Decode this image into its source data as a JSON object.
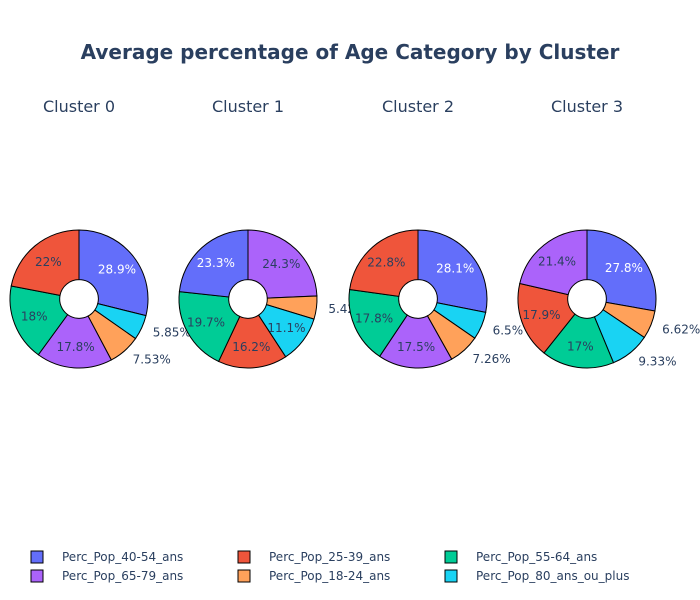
{
  "title": "Average percentage of Age Category by Cluster",
  "chart_data": [
    {
      "type": "pie",
      "title": "Cluster 0",
      "hole": 0.28,
      "slices": [
        {
          "label": "Perc_Pop_40-54_ans",
          "value": 28.9,
          "text": "28.9%"
        },
        {
          "label": "Perc_Pop_80_ans_ou_plus",
          "value": 5.85,
          "text": "5.85%"
        },
        {
          "label": "Perc_Pop_18-24_ans",
          "value": 7.53,
          "text": "7.53%"
        },
        {
          "label": "Perc_Pop_65-79_ans",
          "value": 17.8,
          "text": "17.8%"
        },
        {
          "label": "Perc_Pop_55-64_ans",
          "value": 18,
          "text": "18%"
        },
        {
          "label": "Perc_Pop_25-39_ans",
          "value": 22,
          "text": "22%"
        }
      ]
    },
    {
      "type": "pie",
      "title": "Cluster 1",
      "hole": 0.28,
      "slices": [
        {
          "label": "Perc_Pop_65-79_ans",
          "value": 24.3,
          "text": "24.3%"
        },
        {
          "label": "Perc_Pop_18-24_ans",
          "value": 5.42,
          "text": "5.42%"
        },
        {
          "label": "Perc_Pop_80_ans_ou_plus",
          "value": 11.1,
          "text": "11.1%"
        },
        {
          "label": "Perc_Pop_25-39_ans",
          "value": 16.2,
          "text": "16.2%"
        },
        {
          "label": "Perc_Pop_55-64_ans",
          "value": 19.7,
          "text": "19.7%"
        },
        {
          "label": "Perc_Pop_40-54_ans",
          "value": 23.3,
          "text": "23.3%"
        }
      ]
    },
    {
      "type": "pie",
      "title": "Cluster 2",
      "hole": 0.28,
      "slices": [
        {
          "label": "Perc_Pop_40-54_ans",
          "value": 28.1,
          "text": "28.1%"
        },
        {
          "label": "Perc_Pop_80_ans_ou_plus",
          "value": 6.5,
          "text": "6.5%"
        },
        {
          "label": "Perc_Pop_18-24_ans",
          "value": 7.26,
          "text": "7.26%"
        },
        {
          "label": "Perc_Pop_65-79_ans",
          "value": 17.5,
          "text": "17.5%"
        },
        {
          "label": "Perc_Pop_55-64_ans",
          "value": 17.8,
          "text": "17.8%"
        },
        {
          "label": "Perc_Pop_25-39_ans",
          "value": 22.8,
          "text": "22.8%"
        }
      ]
    },
    {
      "type": "pie",
      "title": "Cluster 3",
      "hole": 0.28,
      "slices": [
        {
          "label": "Perc_Pop_40-54_ans",
          "value": 27.8,
          "text": "27.8%"
        },
        {
          "label": "Perc_Pop_18-24_ans",
          "value": 6.62,
          "text": "6.62%"
        },
        {
          "label": "Perc_Pop_80_ans_ou_plus",
          "value": 9.33,
          "text": "9.33%"
        },
        {
          "label": "Perc_Pop_55-64_ans",
          "value": 17,
          "text": "17%"
        },
        {
          "label": "Perc_Pop_25-39_ans",
          "value": 17.9,
          "text": "17.9%"
        },
        {
          "label": "Perc_Pop_65-79_ans",
          "value": 21.4,
          "text": "21.4%"
        }
      ]
    }
  ],
  "legend": {
    "placement": "bottom",
    "items": [
      {
        "label": "Perc_Pop_40-54_ans",
        "color": "#636efa"
      },
      {
        "label": "Perc_Pop_25-39_ans",
        "color": "#ef553b"
      },
      {
        "label": "Perc_Pop_55-64_ans",
        "color": "#00cc96"
      },
      {
        "label": "Perc_Pop_65-79_ans",
        "color": "#ab63fa"
      },
      {
        "label": "Perc_Pop_18-24_ans",
        "color": "#ffa15a"
      },
      {
        "label": "Perc_Pop_80_ans_ou_plus",
        "color": "#19d3f3"
      }
    ]
  }
}
